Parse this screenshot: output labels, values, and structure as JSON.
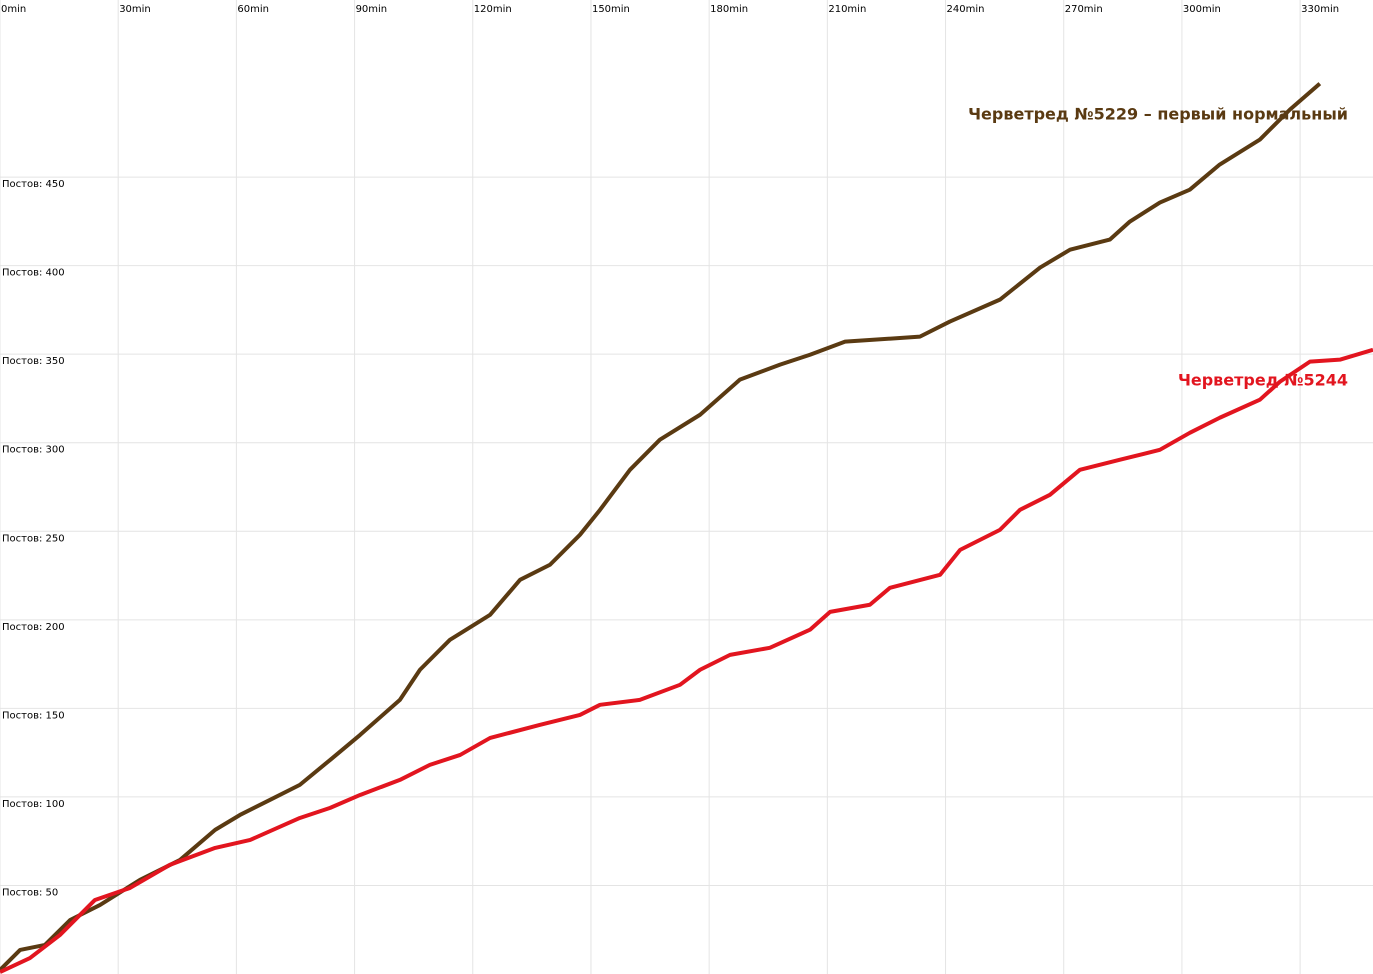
{
  "chart_data": {
    "type": "line",
    "x": [],
    "xlim": [
      0,
      348.5
    ],
    "ylim": [
      0,
      550
    ],
    "grid": true,
    "xticks": [
      {
        "value": 0,
        "label": "0min"
      },
      {
        "value": 30,
        "label": "30min"
      },
      {
        "value": 60,
        "label": "60min"
      },
      {
        "value": 90,
        "label": "90min"
      },
      {
        "value": 120,
        "label": "120min"
      },
      {
        "value": 150,
        "label": "150min"
      },
      {
        "value": 180,
        "label": "180min"
      },
      {
        "value": 210,
        "label": "210min"
      },
      {
        "value": 240,
        "label": "240min"
      },
      {
        "value": 270,
        "label": "270min"
      },
      {
        "value": 300,
        "label": "300min"
      },
      {
        "value": 330,
        "label": "330min"
      }
    ],
    "yticks": [
      {
        "value": 50,
        "label": "Постов: 50"
      },
      {
        "value": 100,
        "label": "Постов: 100"
      },
      {
        "value": 150,
        "label": "Постов: 150"
      },
      {
        "value": 200,
        "label": "Постов: 200"
      },
      {
        "value": 250,
        "label": "Постов: 250"
      },
      {
        "value": 300,
        "label": "Постов: 300"
      },
      {
        "value": 350,
        "label": "Постов: 350"
      },
      {
        "value": 400,
        "label": "Постов: 400"
      },
      {
        "value": 450,
        "label": "Постов: 450"
      }
    ],
    "series": [
      {
        "name": "Черветред №5229 – первый нормальный",
        "color": "#5a3a12",
        "x": [
          0,
          5.1,
          11.4,
          17.8,
          25.4,
          35.5,
          45.7,
          54.6,
          60.9,
          68.5,
          76.1,
          83.8,
          91.4,
          101.5,
          106.6,
          114.2,
          124.4,
          132,
          139.6,
          147.2,
          152.3,
          159.9,
          167.5,
          177.7,
          187.8,
          198,
          205.6,
          214.5,
          233.5,
          241.1,
          253.8,
          264,
          271.6,
          281.7,
          286.8,
          294.4,
          302,
          309.6,
          319.8,
          327.4,
          335
        ],
        "values": [
          2.3,
          13.6,
          16.4,
          30.5,
          39,
          53.1,
          64.4,
          81.4,
          89.8,
          98.3,
          106.8,
          120.9,
          135,
          154.8,
          171.8,
          188.7,
          202.8,
          222.6,
          231.1,
          248,
          262.1,
          284.7,
          301.7,
          315.8,
          335.6,
          344.1,
          349.7,
          357.1,
          359.9,
          368.4,
          380.8,
          398.9,
          409,
          414.7,
          424.9,
          435.6,
          442.9,
          457.1,
          471.2,
          488.1,
          502.8
        ]
      },
      {
        "name": "Черветред №5244",
        "color": "#e2151f",
        "x": [
          0,
          7.6,
          15.2,
          24.1,
          33,
          43.1,
          54.6,
          63.5,
          76.1,
          83.8,
          91.4,
          101.5,
          109.1,
          116.8,
          124.4,
          137.1,
          147.2,
          152.3,
          162.4,
          172.6,
          177.7,
          185.3,
          195.4,
          205.6,
          210.7,
          220.8,
          225.9,
          238.6,
          243.7,
          253.8,
          258.9,
          266.5,
          274.1,
          284.3,
          294.4,
          302,
          309.6,
          319.8,
          324.9,
          332.5,
          340.1,
          348.5
        ],
        "values": [
          1.1,
          9,
          22,
          41.8,
          48.6,
          61.6,
          71.2,
          75.7,
          88.1,
          93.8,
          101.1,
          109.6,
          118.1,
          123.7,
          133.3,
          140.7,
          146.3,
          152,
          154.8,
          163.3,
          171.8,
          180.2,
          184.2,
          194.4,
          204.5,
          208.5,
          218.1,
          225.4,
          239.5,
          250.8,
          262.1,
          270.6,
          284.7,
          290.4,
          296,
          305.6,
          314.1,
          324.3,
          334.5,
          345.8,
          346.9,
          352.5
        ]
      }
    ]
  }
}
